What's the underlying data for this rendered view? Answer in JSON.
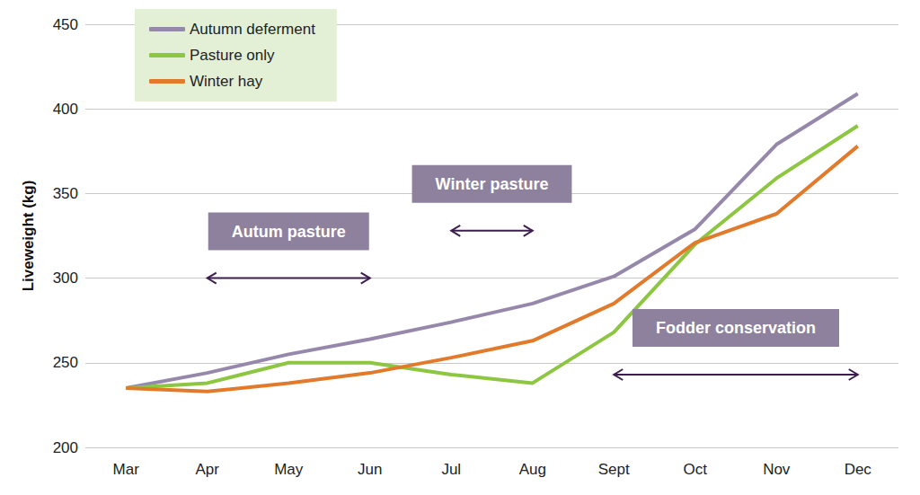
{
  "chart_data": {
    "type": "line",
    "categories": [
      "Mar",
      "Apr",
      "May",
      "Jun",
      "Jul",
      "Aug",
      "Sept",
      "Oct",
      "Nov",
      "Dec"
    ],
    "series": [
      {
        "name": "Autumn deferment",
        "color": "#9688aa",
        "values": [
          235,
          244,
          255,
          264,
          274,
          285,
          301,
          329,
          379,
          409
        ]
      },
      {
        "name": "Pasture only",
        "color": "#8dc640",
        "values": [
          235,
          238,
          250,
          250,
          243,
          238,
          268,
          320,
          359,
          390
        ]
      },
      {
        "name": "Winter hay",
        "color": "#e27a2c",
        "values": [
          235,
          233,
          238,
          244,
          253,
          263,
          285,
          321,
          338,
          378
        ]
      }
    ],
    "ylabel": "Liveweight (kg)",
    "ylim": [
      200,
      450
    ],
    "yticks": [
      200,
      250,
      300,
      350,
      400,
      450
    ],
    "grid": true,
    "legend": "upper left",
    "annotations": [
      {
        "text": "Autum pasture",
        "from": "Apr",
        "to": "Jun",
        "y": 300
      },
      {
        "text": "Winter pasture",
        "from": "Jul",
        "to": "Aug",
        "y": 328
      },
      {
        "text": "Fodder conservation",
        "from": "Sept",
        "to": "Dec",
        "y": 243
      }
    ]
  }
}
